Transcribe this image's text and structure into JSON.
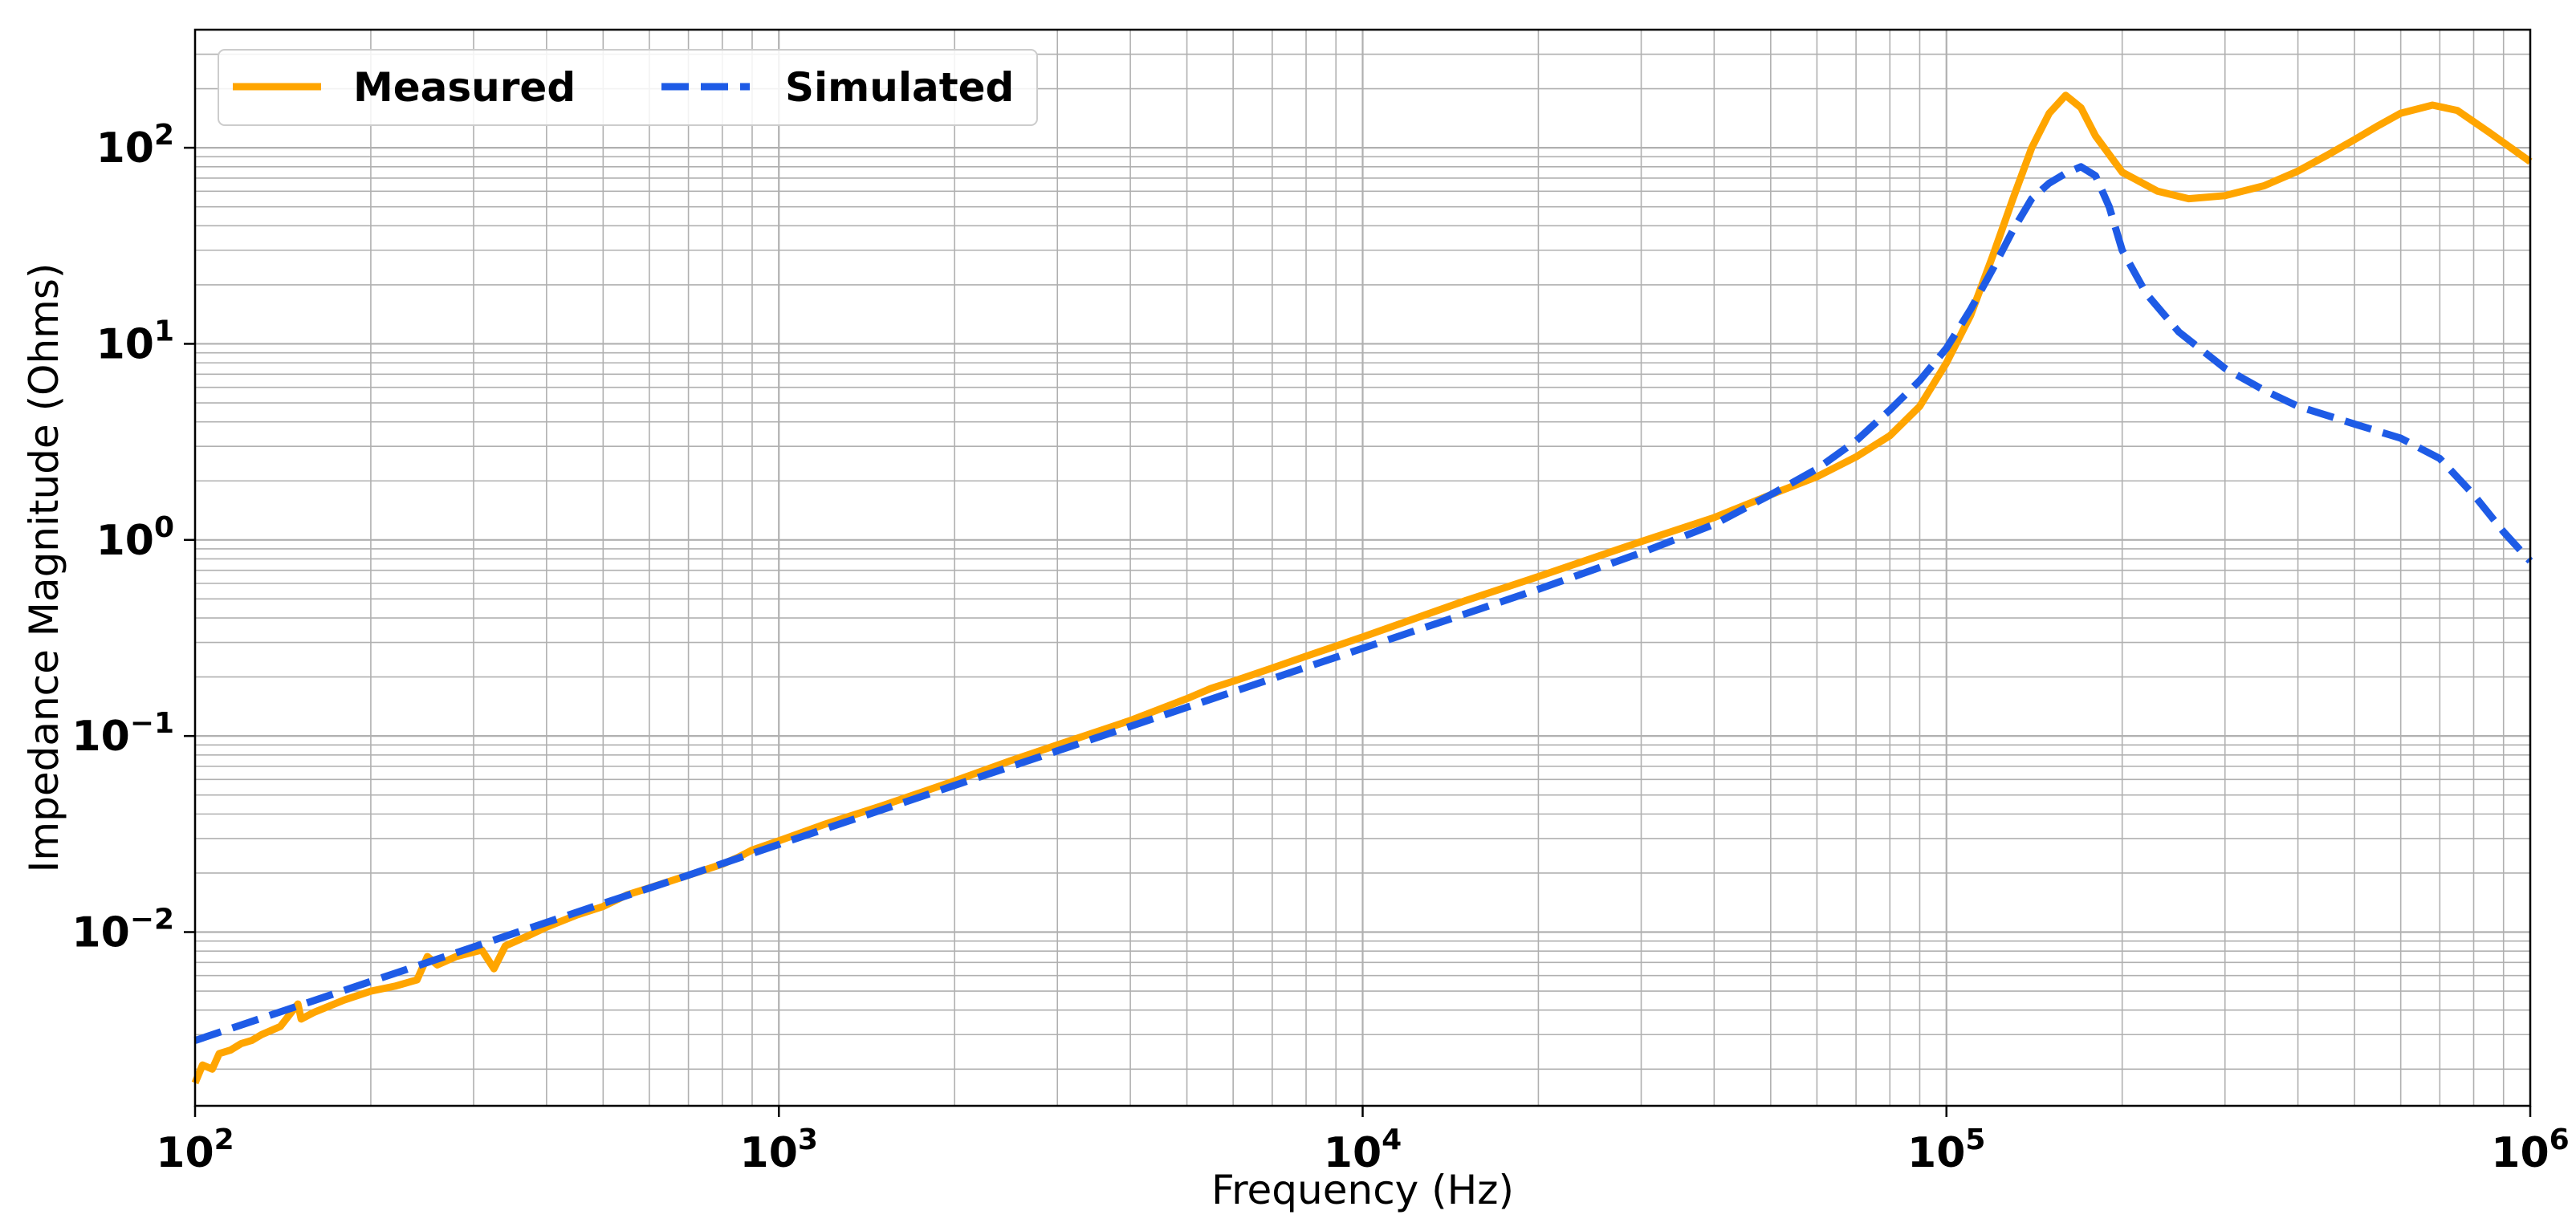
{
  "chart_data": {
    "type": "line",
    "title": "",
    "xlabel": "Frequency (Hz)",
    "ylabel": "Impedance Magnitude (Ohms)",
    "xscale": "log",
    "yscale": "log",
    "xlim": [
      100,
      1000000
    ],
    "ylim": [
      0.0013,
      400
    ],
    "grid": "major and minor",
    "legend_position": "upper-left",
    "x_tick_labels": [
      {
        "base": "10",
        "exp": "2",
        "value": 100
      },
      {
        "base": "10",
        "exp": "3",
        "value": 1000
      },
      {
        "base": "10",
        "exp": "4",
        "value": 10000
      },
      {
        "base": "10",
        "exp": "5",
        "value": 100000
      },
      {
        "base": "10",
        "exp": "6",
        "value": 1000000
      }
    ],
    "y_tick_labels": [
      {
        "base": "10",
        "exp": "−2",
        "value": 0.01
      },
      {
        "base": "10",
        "exp": "−1",
        "value": 0.1
      },
      {
        "base": "10",
        "exp": "0",
        "value": 1
      },
      {
        "base": "10",
        "exp": "1",
        "value": 10
      },
      {
        "base": "10",
        "exp": "2",
        "value": 100
      }
    ],
    "series": [
      {
        "name": "Measured",
        "color": "#FFA500",
        "style": "solid",
        "points": [
          [
            100,
            0.0017
          ],
          [
            103,
            0.0021
          ],
          [
            107,
            0.002
          ],
          [
            110,
            0.0024
          ],
          [
            115,
            0.0025
          ],
          [
            120,
            0.0027
          ],
          [
            125,
            0.0028
          ],
          [
            130,
            0.003
          ],
          [
            140,
            0.0033
          ],
          [
            150,
            0.0043
          ],
          [
            152,
            0.0036
          ],
          [
            160,
            0.0039
          ],
          [
            170,
            0.0042
          ],
          [
            180,
            0.0045
          ],
          [
            200,
            0.005
          ],
          [
            220,
            0.0053
          ],
          [
            240,
            0.0057
          ],
          [
            250,
            0.0075
          ],
          [
            260,
            0.0068
          ],
          [
            280,
            0.0075
          ],
          [
            310,
            0.0081
          ],
          [
            325,
            0.0065
          ],
          [
            340,
            0.0085
          ],
          [
            370,
            0.0095
          ],
          [
            400,
            0.0106
          ],
          [
            450,
            0.0122
          ],
          [
            500,
            0.0135
          ],
          [
            550,
            0.0155
          ],
          [
            600,
            0.0168
          ],
          [
            700,
            0.0195
          ],
          [
            800,
            0.0222
          ],
          [
            850,
            0.024
          ],
          [
            900,
            0.0262
          ],
          [
            1000,
            0.0292
          ],
          [
            1200,
            0.0355
          ],
          [
            1500,
            0.044
          ],
          [
            2000,
            0.059
          ],
          [
            2500,
            0.075
          ],
          [
            3000,
            0.09
          ],
          [
            4000,
            0.12
          ],
          [
            5000,
            0.155
          ],
          [
            5500,
            0.175
          ],
          [
            6000,
            0.19
          ],
          [
            7000,
            0.222
          ],
          [
            8000,
            0.255
          ],
          [
            10000,
            0.32
          ],
          [
            15000,
            0.49
          ],
          [
            20000,
            0.65
          ],
          [
            30000,
            0.98
          ],
          [
            40000,
            1.3
          ],
          [
            50000,
            1.7
          ],
          [
            60000,
            2.1
          ],
          [
            70000,
            2.65
          ],
          [
            80000,
            3.4
          ],
          [
            90000,
            4.8
          ],
          [
            100000,
            8.0
          ],
          [
            110000,
            14.0
          ],
          [
            120000,
            28.0
          ],
          [
            130000,
            55.0
          ],
          [
            140000,
            100.0
          ],
          [
            150000,
            150.0
          ],
          [
            160000,
            185.0
          ],
          [
            170000,
            160.0
          ],
          [
            180000,
            115.0
          ],
          [
            200000,
            75.0
          ],
          [
            230000,
            60.0
          ],
          [
            260000,
            55.0
          ],
          [
            300000,
            57.0
          ],
          [
            350000,
            64.0
          ],
          [
            400000,
            76.0
          ],
          [
            450000,
            92.0
          ],
          [
            500000,
            110.0
          ],
          [
            550000,
            130.0
          ],
          [
            600000,
            150.0
          ],
          [
            680000,
            165.0
          ],
          [
            750000,
            155.0
          ],
          [
            850000,
            120.0
          ],
          [
            1000000,
            85.0
          ]
        ]
      },
      {
        "name": "Simulated",
        "color": "#1E5BE6",
        "style": "dashed",
        "points": [
          [
            100,
            0.0028
          ],
          [
            150,
            0.0042
          ],
          [
            200,
            0.0056
          ],
          [
            300,
            0.0084
          ],
          [
            500,
            0.014
          ],
          [
            700,
            0.0195
          ],
          [
            1000,
            0.028
          ],
          [
            2000,
            0.056
          ],
          [
            3000,
            0.084
          ],
          [
            5000,
            0.14
          ],
          [
            7000,
            0.196
          ],
          [
            10000,
            0.28
          ],
          [
            15000,
            0.42
          ],
          [
            20000,
            0.56
          ],
          [
            30000,
            0.86
          ],
          [
            40000,
            1.2
          ],
          [
            50000,
            1.7
          ],
          [
            60000,
            2.3
          ],
          [
            70000,
            3.2
          ],
          [
            80000,
            4.6
          ],
          [
            90000,
            6.5
          ],
          [
            100000,
            9.5
          ],
          [
            110000,
            15.0
          ],
          [
            120000,
            24.0
          ],
          [
            130000,
            38.0
          ],
          [
            140000,
            55.0
          ],
          [
            150000,
            66.0
          ],
          [
            160000,
            74.0
          ],
          [
            170000,
            80.0
          ],
          [
            180000,
            72.0
          ],
          [
            190000,
            50.0
          ],
          [
            200000,
            30.0
          ],
          [
            220000,
            18.0
          ],
          [
            250000,
            11.5
          ],
          [
            300000,
            7.5
          ],
          [
            350000,
            5.8
          ],
          [
            400000,
            4.8
          ],
          [
            500000,
            3.9
          ],
          [
            600000,
            3.3
          ],
          [
            700000,
            2.6
          ],
          [
            800000,
            1.7
          ],
          [
            900000,
            1.1
          ],
          [
            1000000,
            0.78
          ]
        ]
      }
    ]
  }
}
